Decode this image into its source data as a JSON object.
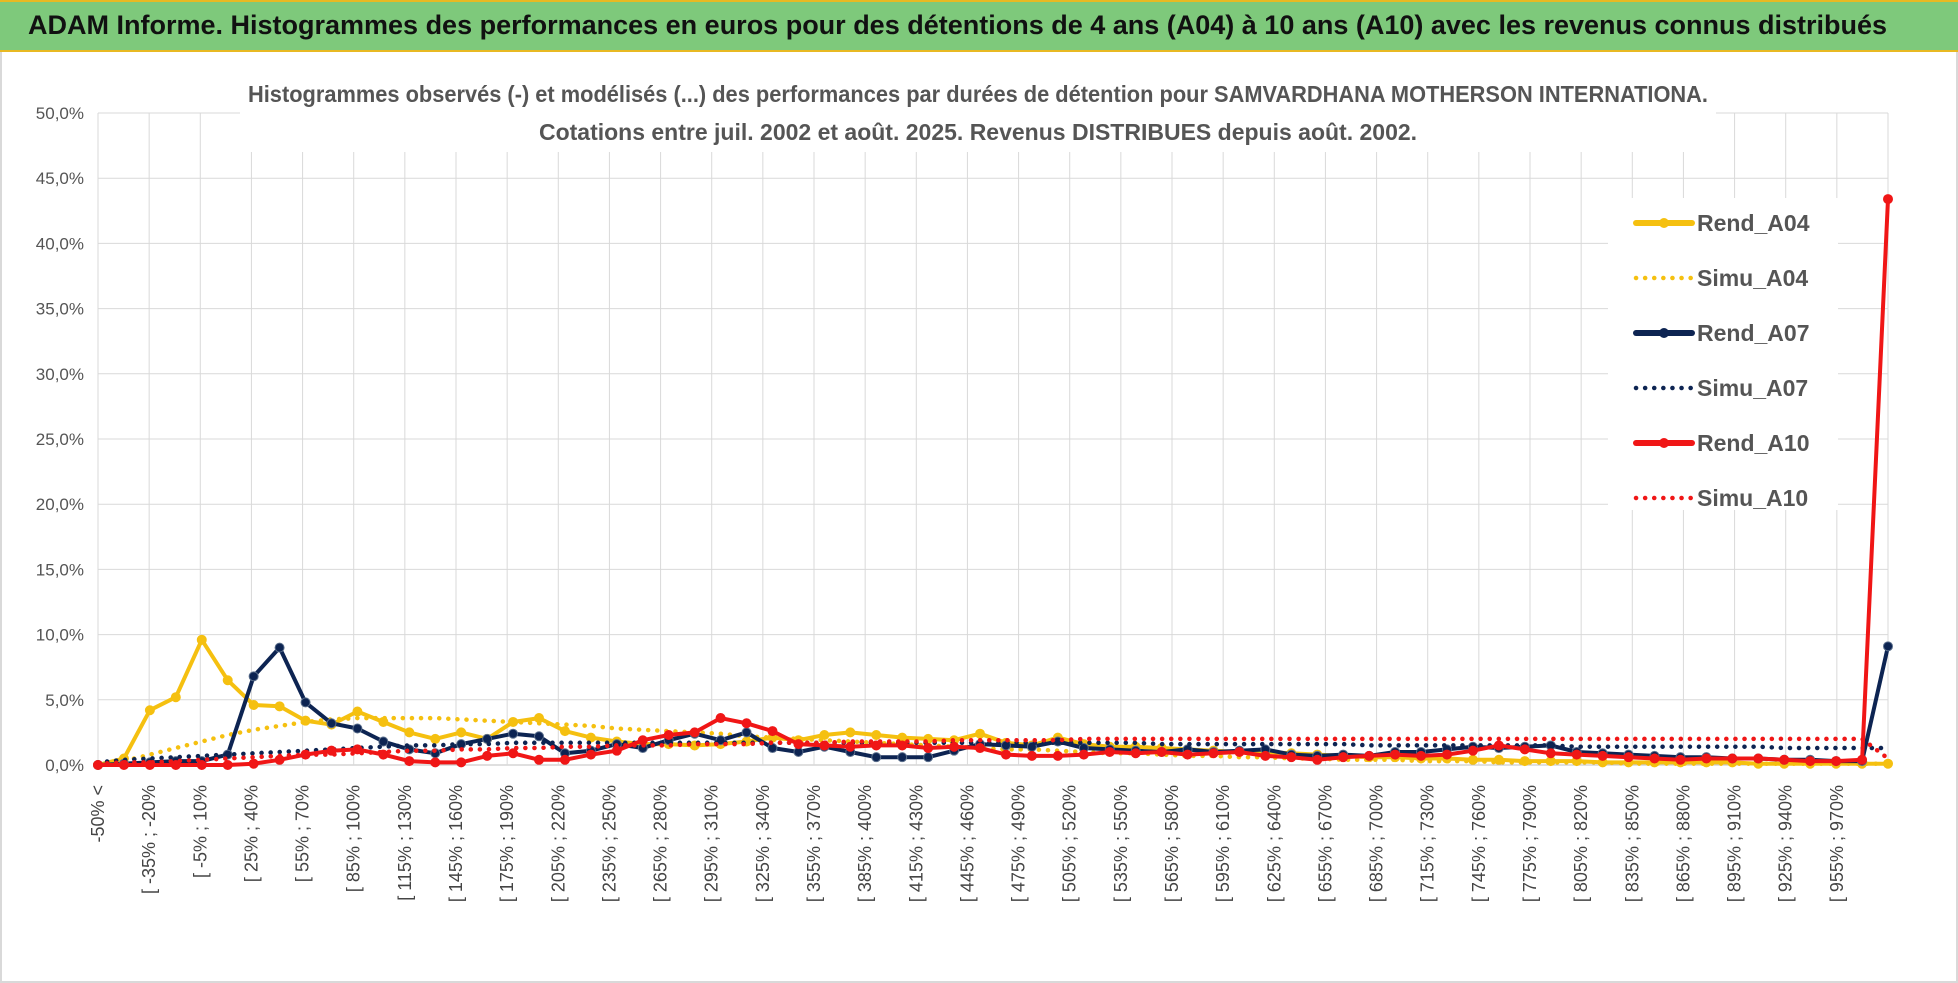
{
  "banner": {
    "title": "ADAM Informe. Histogrammes des performances en euros pour des détentions de 4 ans (A04) à 10 ans (A10) avec les revenus connus distribués"
  },
  "colors": {
    "banner_bg": "#7ec97b",
    "banner_border": "#e8b923",
    "A04": "#f5c010",
    "A07": "#0d2452",
    "A10": "#f01616"
  },
  "chart_data": {
    "type": "line",
    "title": [
      "Histogrammes observés (-) et modélisés (...) des performances par durées de détention pour SAMVARDHANA MOTHERSON INTERNATIONA.",
      "Cotations entre juil. 2002 et août. 2025. Revenus DISTRIBUES depuis août. 2002."
    ],
    "ylim": [
      0,
      50
    ],
    "yticks": [
      "0,0%",
      "5,0%",
      "10,0%",
      "15,0%",
      "20,0%",
      "25,0%",
      "30,0%",
      "35,0%",
      "40,0%",
      "45,0%",
      "50,0%"
    ],
    "xtick_labels": [
      "-50% <",
      "[ -35% ; -20%",
      "[ -5% ; 10%",
      "[ 25% ; 40%",
      "[ 55% ; 70%",
      "[ 85% ; 100%",
      "[ 115% ; 130%",
      "[ 145% ; 160%",
      "[ 175% ; 190%",
      "[ 205% ; 220%",
      "[ 235% ; 250%",
      "[ 265% ; 280%",
      "[ 295% ; 310%",
      "[ 325% ; 340%",
      "[ 355% ; 370%",
      "[ 385% ; 400%",
      "[ 415% ; 430%",
      "[ 445% ; 460%",
      "[ 475% ; 490%",
      "[ 505% ; 520%",
      "[ 535% ; 550%",
      "[ 565% ; 580%",
      "[ 595% ; 610%",
      "[ 625% ; 640%",
      "[ 655% ; 670%",
      "[ 685% ; 700%",
      "[ 715% ; 730%",
      "[ 745% ; 760%",
      "[ 775% ; 790%",
      "[ 805% ; 820%",
      "[ 835% ; 850%",
      "[ 865% ; 880%",
      "[ 895% ; 910%",
      "[ 925% ; 940%",
      "[ 955% ; 970%"
    ],
    "grid": true,
    "legend_position": "right",
    "series": [
      {
        "name": "Rend_A04",
        "style": "solid",
        "color": "#f5c010",
        "values": [
          0.0,
          0.5,
          4.2,
          5.2,
          9.6,
          6.5,
          4.6,
          4.5,
          3.4,
          3.1,
          4.1,
          3.3,
          2.5,
          2.0,
          2.5,
          2.0,
          3.3,
          3.6,
          2.6,
          2.1,
          1.8,
          1.6,
          1.6,
          1.5,
          1.6,
          1.8,
          2.1,
          1.9,
          2.3,
          2.5,
          2.3,
          2.1,
          2.0,
          1.9,
          2.4,
          1.7,
          1.5,
          2.1,
          1.6,
          1.4,
          1.4,
          1.3,
          1.2,
          1.1,
          1.0,
          1.0,
          0.9,
          0.8,
          0.7,
          0.6,
          0.6,
          0.5,
          0.5,
          0.4,
          0.4,
          0.3,
          0.3,
          0.3,
          0.2,
          0.2,
          0.2,
          0.2,
          0.2,
          0.2,
          0.1,
          0.1,
          0.1,
          0.1,
          0.1,
          0.1
        ]
      },
      {
        "name": "Simu_A04",
        "style": "dotted",
        "color": "#f5c010",
        "values": [
          0.1,
          0.3,
          0.8,
          1.3,
          1.8,
          2.3,
          2.7,
          3.0,
          3.3,
          3.5,
          3.6,
          3.6,
          3.6,
          3.6,
          3.5,
          3.4,
          3.3,
          3.2,
          3.1,
          3.0,
          2.8,
          2.7,
          2.6,
          2.5,
          2.4,
          2.2,
          2.1,
          2.0,
          1.9,
          1.8,
          1.7,
          1.6,
          1.5,
          1.4,
          1.3,
          1.2,
          1.2,
          1.1,
          1.0,
          0.9,
          0.9,
          0.8,
          0.7,
          0.7,
          0.6,
          0.6,
          0.5,
          0.5,
          0.4,
          0.4,
          0.4,
          0.3,
          0.3,
          0.3,
          0.2,
          0.2,
          0.2,
          0.2,
          0.2,
          0.1,
          0.1,
          0.1,
          0.1,
          0.1,
          0.1,
          0.1,
          0.1,
          0.1,
          0.1,
          0.1
        ]
      },
      {
        "name": "Rend_A07",
        "style": "solid",
        "color": "#0d2452",
        "values": [
          0.0,
          0.1,
          0.2,
          0.3,
          0.3,
          0.8,
          6.8,
          9.0,
          4.8,
          3.2,
          2.8,
          1.8,
          1.2,
          0.9,
          1.6,
          2.0,
          2.4,
          2.2,
          0.9,
          1.1,
          1.6,
          1.3,
          1.9,
          2.4,
          1.9,
          2.5,
          1.3,
          1.0,
          1.4,
          1.0,
          0.6,
          0.6,
          0.6,
          1.1,
          1.6,
          1.5,
          1.4,
          1.8,
          1.3,
          1.2,
          1.1,
          1.0,
          1.2,
          1.0,
          1.1,
          1.2,
          0.8,
          0.7,
          0.8,
          0.7,
          1.0,
          1.0,
          1.2,
          1.4,
          1.3,
          1.4,
          1.5,
          1.0,
          0.9,
          0.8,
          0.7,
          0.6,
          0.6,
          0.5,
          0.5,
          0.4,
          0.4,
          0.3,
          0.3,
          9.1
        ]
      },
      {
        "name": "Simu_A07",
        "style": "dotted",
        "color": "#0d2452",
        "values": [
          0.2,
          0.4,
          0.5,
          0.6,
          0.7,
          0.8,
          0.9,
          1.0,
          1.1,
          1.2,
          1.3,
          1.4,
          1.5,
          1.5,
          1.6,
          1.6,
          1.7,
          1.7,
          1.7,
          1.7,
          1.7,
          1.7,
          1.7,
          1.7,
          1.7,
          1.7,
          1.7,
          1.7,
          1.7,
          1.7,
          1.7,
          1.7,
          1.7,
          1.7,
          1.7,
          1.7,
          1.7,
          1.7,
          1.7,
          1.7,
          1.7,
          1.6,
          1.6,
          1.6,
          1.6,
          1.6,
          1.6,
          1.6,
          1.6,
          1.5,
          1.5,
          1.5,
          1.5,
          1.5,
          1.5,
          1.5,
          1.5,
          1.4,
          1.4,
          1.4,
          1.4,
          1.4,
          1.4,
          1.4,
          1.4,
          1.3,
          1.3,
          1.3,
          1.3,
          1.3
        ]
      },
      {
        "name": "Rend_A10",
        "style": "solid",
        "color": "#f01616",
        "values": [
          0.0,
          0.0,
          0.0,
          0.0,
          0.0,
          0.0,
          0.1,
          0.4,
          0.8,
          1.1,
          1.2,
          0.8,
          0.3,
          0.2,
          0.2,
          0.7,
          0.9,
          0.4,
          0.4,
          0.8,
          1.1,
          1.9,
          2.3,
          2.5,
          3.6,
          3.2,
          2.6,
          1.6,
          1.5,
          1.4,
          1.5,
          1.5,
          1.3,
          1.4,
          1.3,
          0.8,
          0.7,
          0.7,
          0.8,
          1.0,
          0.9,
          1.0,
          0.8,
          0.9,
          1.0,
          0.7,
          0.6,
          0.4,
          0.6,
          0.7,
          0.8,
          0.7,
          0.8,
          1.1,
          1.5,
          1.2,
          0.9,
          0.8,
          0.7,
          0.6,
          0.5,
          0.4,
          0.5,
          0.5,
          0.5,
          0.4,
          0.3,
          0.3,
          0.4,
          43.4
        ]
      },
      {
        "name": "Simu_A10",
        "style": "dotted",
        "color": "#f01616",
        "values": [
          0.1,
          0.2,
          0.2,
          0.3,
          0.4,
          0.5,
          0.6,
          0.7,
          0.8,
          0.8,
          0.9,
          1.0,
          1.1,
          1.1,
          1.2,
          1.2,
          1.3,
          1.3,
          1.4,
          1.4,
          1.5,
          1.5,
          1.5,
          1.6,
          1.6,
          1.6,
          1.7,
          1.7,
          1.7,
          1.8,
          1.8,
          1.8,
          1.8,
          1.9,
          1.9,
          1.9,
          1.9,
          1.9,
          2.0,
          2.0,
          2.0,
          2.0,
          2.0,
          2.0,
          2.0,
          2.0,
          2.0,
          2.0,
          2.0,
          2.0,
          2.0,
          2.0,
          2.0,
          2.0,
          2.0,
          2.0,
          2.0,
          2.0,
          2.0,
          2.0,
          2.0,
          2.0,
          2.0,
          2.0,
          2.0,
          2.0,
          2.0,
          2.0,
          2.0,
          0.5
        ]
      }
    ]
  }
}
